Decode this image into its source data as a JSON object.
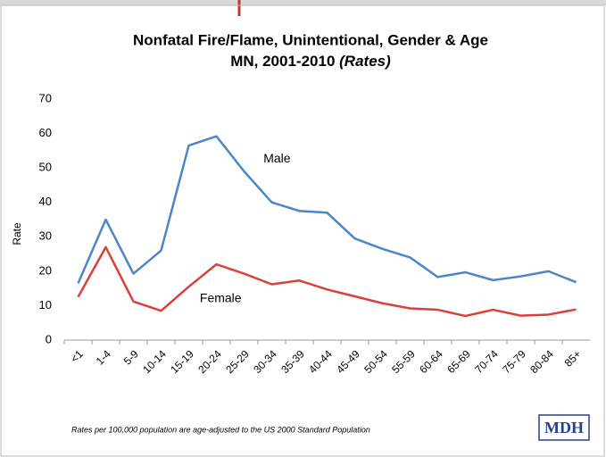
{
  "chart_data": {
    "type": "line",
    "title": "Nonfatal Fire/Flame, Unintentional, Gender & Age",
    "subtitle": "MN, 2001-2010",
    "subtitle_emphasis": "(Rates)",
    "y_label": "Rate",
    "categories": [
      "<1",
      "1-4",
      "5-9",
      "10-14",
      "15-19",
      "20-24",
      "25-29",
      "30-34",
      "35-39",
      "40-44",
      "45-49",
      "50-54",
      "55-59",
      "60-64",
      "65-69",
      "70-74",
      "75-79",
      "80-84",
      "85+"
    ],
    "series": [
      {
        "name": "Male",
        "color": "#4a86c8",
        "values": [
          16.5,
          35,
          19.3,
          26,
          56.5,
          59.2,
          49,
          40,
          37.5,
          37,
          29.5,
          26.5,
          24,
          18.3,
          19.7,
          17.4,
          18.5,
          20,
          16.8
        ]
      },
      {
        "name": "Female",
        "color": "#d9413a",
        "values": [
          12.5,
          27,
          11.2,
          8.5,
          15.5,
          22,
          19.3,
          16.2,
          17.3,
          14.7,
          12.7,
          10.7,
          9.2,
          8.8,
          7,
          8.8,
          7.1,
          7.4,
          8.9
        ]
      }
    ],
    "ylim": [
      0,
      70
    ],
    "yticks": [
      0,
      10,
      20,
      30,
      40,
      50,
      60,
      70
    ],
    "grid": false,
    "footnote": "Rates per 100,000 population are age-adjusted to the US 2000 Standard Population",
    "logo": "MDH"
  }
}
